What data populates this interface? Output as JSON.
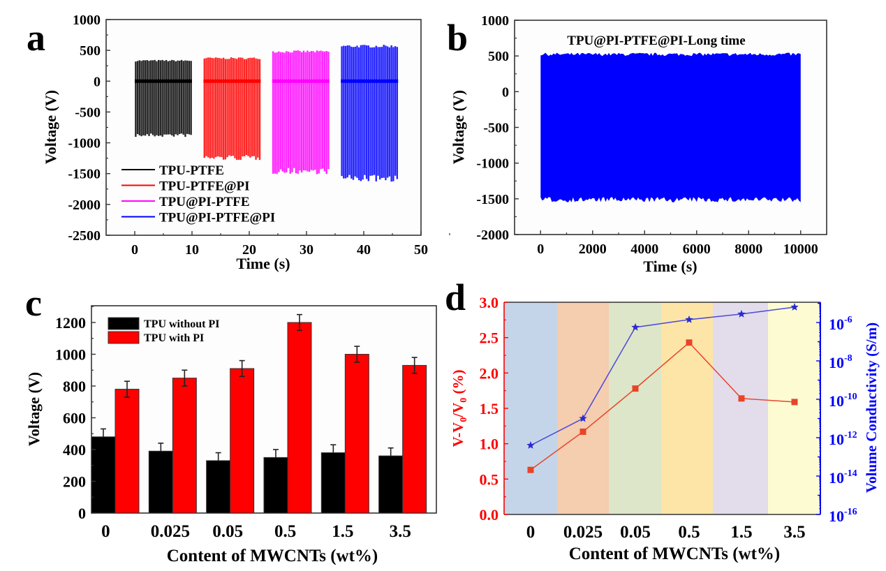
{
  "chart_data": [
    {
      "panel": "a",
      "type": "line",
      "panel_label": "a",
      "title": "",
      "xlabel": "Time (s)",
      "ylabel": "Voltage (V)",
      "xlim": [
        -5,
        50
      ],
      "ylim": [
        -2500,
        1000
      ],
      "xticks": [
        "0",
        "10",
        "20",
        "30",
        "40",
        "50"
      ],
      "xtick_values": [
        0,
        10,
        20,
        30,
        40,
        50
      ],
      "yticks": [
        "1000",
        "500",
        "0",
        "-500",
        "-1000",
        "-1500",
        "-2000",
        "-2500"
      ],
      "ytick_values": [
        1000,
        500,
        0,
        -500,
        -1000,
        -1500,
        -2000,
        -2500
      ],
      "legend_position": "bottom-left",
      "series": [
        {
          "name": "TPU-PTFE",
          "color": "#000000",
          "t_start": 0,
          "t_end": 10,
          "peak_pos": 340,
          "peak_neg": -890,
          "pulses": 30
        },
        {
          "name": "TPU-PTFE@PI",
          "color": "#ff0000",
          "t_start": 12,
          "t_end": 22,
          "peak_pos": 380,
          "peak_neg": -1260,
          "pulses": 30
        },
        {
          "name": "TPU@PI-PTFE",
          "color": "#ff00ff",
          "t_start": 24,
          "t_end": 34,
          "peak_pos": 490,
          "peak_neg": -1480,
          "pulses": 30
        },
        {
          "name": "TPU@PI-PTFE@PI",
          "color": "#0000ff",
          "t_start": 36,
          "t_end": 46,
          "peak_pos": 580,
          "peak_neg": -1600,
          "pulses": 30
        }
      ]
    },
    {
      "panel": "b",
      "type": "line",
      "panel_label": "b",
      "title": "TPU@PI-PTFE@PI-Long time",
      "xlabel": "Time (s)",
      "ylabel": "Voltage (V)",
      "xlim": [
        -1000,
        11000
      ],
      "ylim": [
        -2000,
        1000
      ],
      "xticks": [
        "0",
        "2000",
        "4000",
        "6000",
        "8000",
        "10000"
      ],
      "xtick_values": [
        0,
        2000,
        4000,
        6000,
        8000,
        10000
      ],
      "yticks": [
        "1000",
        "500",
        "0",
        "-500",
        "-1000",
        "-1500",
        "-2000"
      ],
      "ytick_values": [
        1000,
        500,
        0,
        -500,
        -1000,
        -1500,
        -2000
      ],
      "series": [
        {
          "name": "TPU@PI-PTFE@PI",
          "color": "#0000ff",
          "t_start": 0,
          "t_end": 10000,
          "peak_pos": 520,
          "peak_neg": -1520
        }
      ]
    },
    {
      "panel": "c",
      "type": "bar",
      "panel_label": "c",
      "title": "",
      "xlabel": "Content of MWCNTs (wt%)",
      "ylabel": "Voltage (V)",
      "ylim": [
        0,
        1300
      ],
      "yticks": [
        "0",
        "200",
        "400",
        "600",
        "800",
        "1000",
        "1200"
      ],
      "ytick_values": [
        0,
        200,
        400,
        600,
        800,
        1000,
        1200
      ],
      "categories": [
        "0",
        "0.025",
        "0.05",
        "0.5",
        "1.5",
        "3.5"
      ],
      "legend_position": "top-left",
      "series": [
        {
          "name": "TPU without PI",
          "color": "#000000",
          "values": [
            480,
            390,
            330,
            350,
            380,
            360
          ],
          "errors": [
            50,
            50,
            50,
            50,
            50,
            50
          ]
        },
        {
          "name": "TPU with PI",
          "color": "#ff0000",
          "values": [
            780,
            850,
            910,
            1200,
            1000,
            930
          ],
          "errors": [
            50,
            50,
            50,
            50,
            50,
            50
          ]
        }
      ]
    },
    {
      "panel": "d",
      "type": "line",
      "panel_label": "d",
      "title": "",
      "xlabel": "Content of MWCNTs (wt%)",
      "ylabel_left": "V-V0/V0 (%)",
      "ylabel_right": "Volume Conductivity (S/m)",
      "categories": [
        "0",
        "0.025",
        "0.05",
        "0.5",
        "1.5",
        "3.5"
      ],
      "ylim_left": [
        0,
        3.0
      ],
      "yticks_left": [
        "0.0",
        "0.5",
        "1.0",
        "1.5",
        "2.0",
        "2.5",
        "3.0"
      ],
      "ytick_values_left": [
        0,
        0.5,
        1.0,
        1.5,
        2.0,
        2.5,
        3.0
      ],
      "ylim_right_log10": [
        -16,
        -5
      ],
      "yticks_right_exponents": [
        "-16",
        "-14",
        "-12",
        "-10",
        "-8",
        "-6"
      ],
      "ytick_values_right_log10": [
        -16,
        -14,
        -12,
        -10,
        -8,
        -6
      ],
      "left_axis_color": "#ff0000",
      "right_axis_color": "#0000ff",
      "band_colors": [
        "#c5d5e9",
        "#f5cdaf",
        "#dde6c8",
        "#fde5a8",
        "#e2dceb",
        "#fdfbd2"
      ],
      "series": [
        {
          "name": "V-V0/V0",
          "axis": "left",
          "marker": "square",
          "color": "#e8442a",
          "values": [
            0.63,
            1.17,
            1.78,
            2.43,
            1.64,
            1.59
          ]
        },
        {
          "name": "Volume Conductivity",
          "axis": "right",
          "marker": "star",
          "color": "#4a4ad8",
          "values_log10": [
            -12.4,
            -11.0,
            -6.25,
            -5.85,
            -5.56,
            -5.2
          ]
        }
      ]
    }
  ]
}
